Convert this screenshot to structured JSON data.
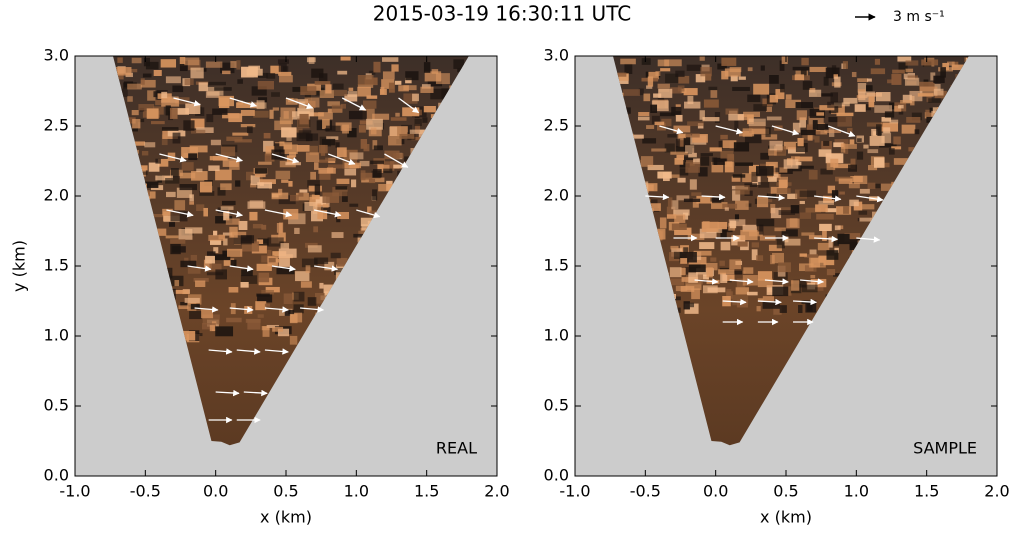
{
  "title": "2015-03-19 16:30:11 UTC",
  "quiver_key": {
    "value": 3,
    "label": "3 m s⁻¹"
  },
  "chart_data": [
    {
      "type": "quiver",
      "label": "REAL",
      "xlabel": "x (km)",
      "ylabel": "y (km)",
      "xlim": [
        -1,
        2
      ],
      "ylim": [
        0,
        3
      ],
      "xticks": [
        {
          "value": -1,
          "label": "-1.0"
        },
        {
          "value": -0.5,
          "label": "-0.5"
        },
        {
          "value": 0,
          "label": "0.0"
        },
        {
          "value": 0.5,
          "label": "0.5"
        },
        {
          "value": 1,
          "label": "1.0"
        },
        {
          "value": 1.5,
          "label": "1.5"
        },
        {
          "value": 2,
          "label": "2.0"
        }
      ],
      "yticks": [
        {
          "value": 0,
          "label": "0.0"
        },
        {
          "value": 0.5,
          "label": "0.5"
        },
        {
          "value": 1,
          "label": "1.0"
        },
        {
          "value": 1.5,
          "label": "1.5"
        },
        {
          "value": 2,
          "label": "2.0"
        },
        {
          "value": 2.5,
          "label": "2.5"
        },
        {
          "value": 3,
          "label": "3.0"
        }
      ],
      "color": "#ffffff",
      "quiver": {
        "x": [
          -0.05,
          0.15,
          0.0,
          0.2,
          -0.05,
          0.15,
          0.35,
          -0.15,
          0.1,
          0.35,
          0.6,
          -0.2,
          0.1,
          0.4,
          0.7,
          -0.35,
          0.0,
          0.35,
          0.7,
          1.0,
          -0.4,
          0.0,
          0.4,
          0.8,
          1.2,
          -0.3,
          0.1,
          0.5,
          0.9,
          1.3
        ],
        "y": [
          0.4,
          0.4,
          0.6,
          0.6,
          0.9,
          0.9,
          0.9,
          1.2,
          1.2,
          1.2,
          1.2,
          1.5,
          1.5,
          1.5,
          1.5,
          1.9,
          1.9,
          1.9,
          1.9,
          1.9,
          2.3,
          2.3,
          2.3,
          2.3,
          2.3,
          2.7,
          2.7,
          2.7,
          2.7,
          2.7
        ],
        "u": [
          3.5,
          3.5,
          3.5,
          3.5,
          3.5,
          3.5,
          3.5,
          3.5,
          3.5,
          3.5,
          3.5,
          3.5,
          3.5,
          3.5,
          3.5,
          4,
          4,
          4,
          4,
          3.5,
          4,
          4,
          4,
          4,
          3.5,
          4,
          4,
          4,
          3.5,
          3
        ],
        "v": [
          0,
          0,
          -0.2,
          -0.2,
          -0.3,
          -0.3,
          -0.3,
          -0.3,
          -0.3,
          -0.3,
          -0.3,
          -0.5,
          -0.5,
          -0.5,
          -0.5,
          -0.8,
          -0.8,
          -0.8,
          -0.8,
          -1,
          -1,
          -1,
          -1.2,
          -1.5,
          -2,
          -1,
          -1.2,
          -1.5,
          -1.8,
          -2.2
        ]
      }
    },
    {
      "type": "quiver",
      "label": "SAMPLE",
      "xlabel": "x (km)",
      "xlim": [
        -1,
        2
      ],
      "ylim": [
        0,
        3
      ],
      "xticks": [
        {
          "value": -1,
          "label": "-1.0"
        },
        {
          "value": -0.5,
          "label": "-0.5"
        },
        {
          "value": 0,
          "label": "0.0"
        },
        {
          "value": 0.5,
          "label": "0.5"
        },
        {
          "value": 1,
          "label": "1.0"
        },
        {
          "value": 1.5,
          "label": "1.5"
        },
        {
          "value": 2,
          "label": "2.0"
        }
      ],
      "yticks": [
        {
          "value": 0,
          "label": "0.0"
        },
        {
          "value": 0.5,
          "label": "0.5"
        },
        {
          "value": 1,
          "label": "1.0"
        },
        {
          "value": 1.5,
          "label": "1.5"
        },
        {
          "value": 2,
          "label": "2.0"
        },
        {
          "value": 2.5,
          "label": "2.5"
        },
        {
          "value": 3,
          "label": "3.0"
        }
      ],
      "color": "#ffffff",
      "quiver": {
        "x": [
          0.05,
          0.3,
          0.55,
          0.05,
          0.3,
          0.55,
          -0.15,
          0.1,
          0.35,
          0.6,
          -0.3,
          0.0,
          0.35,
          0.7,
          1.0,
          -0.5,
          -0.1,
          0.3,
          0.7,
          1.0,
          -0.4,
          0.0,
          0.4,
          0.8
        ],
        "y": [
          1.1,
          1.1,
          1.1,
          1.25,
          1.25,
          1.25,
          1.4,
          1.4,
          1.4,
          1.4,
          1.7,
          1.7,
          1.7,
          1.7,
          1.7,
          2.0,
          2.0,
          2.0,
          2.0,
          2.0,
          2.5,
          2.5,
          2.5,
          2.5
        ],
        "u": [
          3,
          3,
          3,
          3.5,
          3.5,
          3.5,
          3.5,
          3.5,
          3.5,
          3.5,
          3.5,
          3.5,
          3.5,
          3.5,
          3.5,
          3.5,
          3.5,
          4,
          4,
          4,
          3.5,
          4,
          4,
          4
        ],
        "v": [
          0,
          0,
          0,
          -0.2,
          -0.2,
          -0.2,
          -0.3,
          -0.3,
          -0.3,
          -0.3,
          0,
          0,
          0,
          -0.2,
          -0.3,
          -0.2,
          -0.2,
          -0.3,
          -0.5,
          -0.6,
          -1,
          -1,
          -1.2,
          -1.5
        ]
      }
    }
  ]
}
